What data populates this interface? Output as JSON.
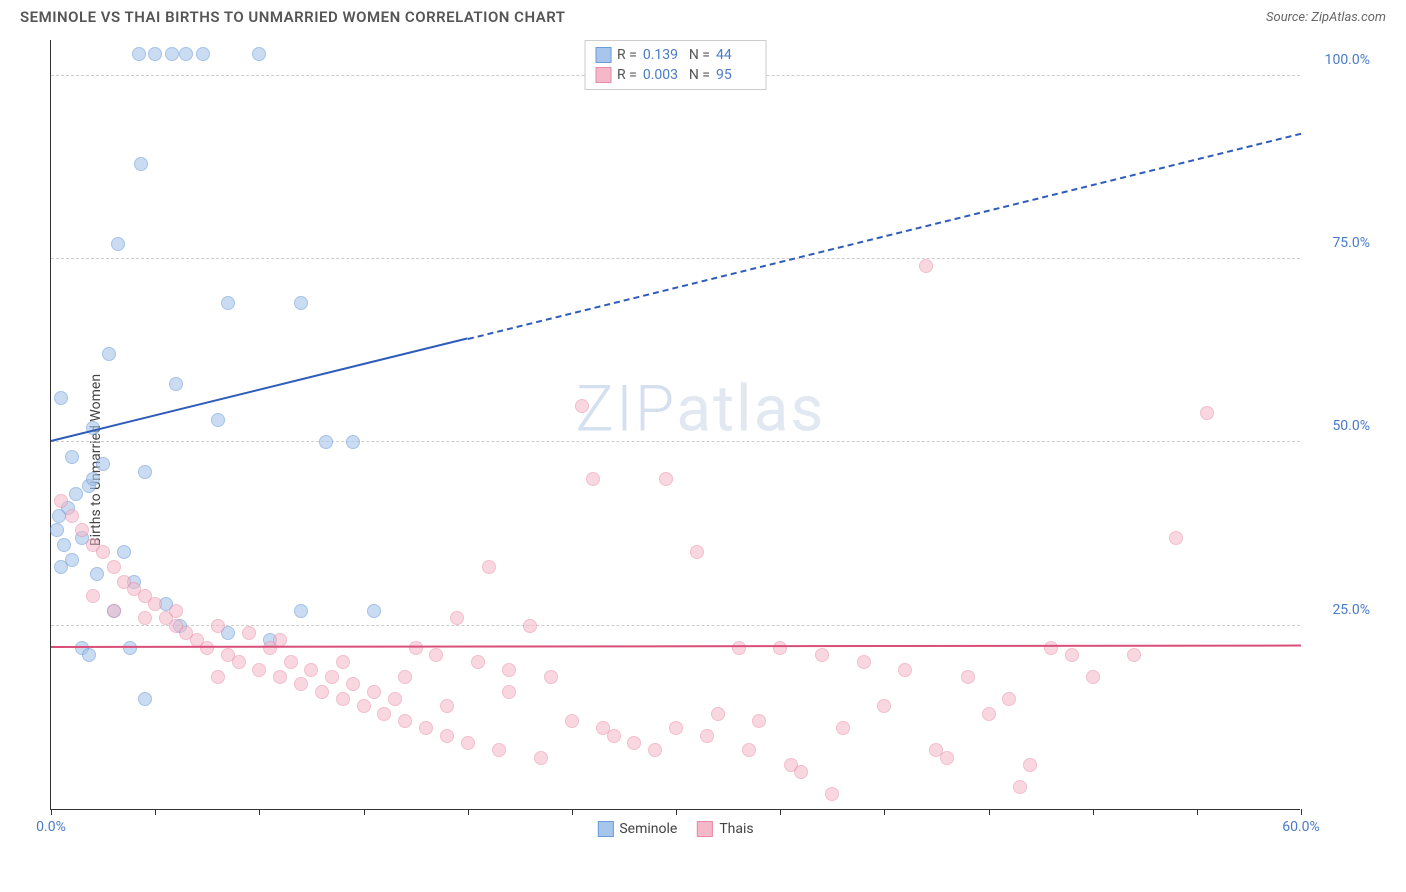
{
  "header": {
    "title": "SEMINOLE VS THAI BIRTHS TO UNMARRIED WOMEN CORRELATION CHART",
    "source": "Source: ZipAtlas.com"
  },
  "watermark": {
    "zip": "ZIP",
    "atlas": "atlas"
  },
  "chart": {
    "type": "scatter",
    "ylabel": "Births to Unmarried Women",
    "xlim": [
      0,
      60
    ],
    "ylim": [
      0,
      105
    ],
    "xtick_positions": [
      0,
      5,
      10,
      15,
      20,
      25,
      30,
      35,
      40,
      45,
      50,
      55,
      60
    ],
    "xtick_labels": {
      "0": "0.0%",
      "60": "60.0%"
    },
    "ytick_positions": [
      25,
      50,
      75,
      100
    ],
    "ytick_labels": {
      "25": "25.0%",
      "50": "50.0%",
      "75": "75.0%",
      "100": "100.0%"
    },
    "background_color": "#ffffff",
    "grid_color": "#cccccc",
    "axis_color": "#333333",
    "tick_label_color": "#4a7bc8",
    "label_fontsize": 14,
    "point_radius": 7,
    "series": [
      {
        "name": "Seminole",
        "fill_color": "#a8c5eb",
        "stroke_color": "#6b9bd8",
        "fill_opacity": 0.6,
        "r_value": "0.139",
        "n_value": "44",
        "trend": {
          "color": "#2e5cb8",
          "solid_x_range": [
            0,
            20
          ],
          "dashed_x_range": [
            20,
            60
          ],
          "y_at_x0": 50,
          "y_at_x60": 92
        },
        "points": [
          [
            4.2,
            103
          ],
          [
            5.0,
            103
          ],
          [
            5.8,
            103
          ],
          [
            6.5,
            103
          ],
          [
            7.3,
            103
          ],
          [
            10.0,
            103
          ],
          [
            4.3,
            88
          ],
          [
            3.2,
            77
          ],
          [
            8.5,
            69
          ],
          [
            12.0,
            69
          ],
          [
            2.8,
            62
          ],
          [
            6.0,
            58
          ],
          [
            0.5,
            56
          ],
          [
            8.0,
            53
          ],
          [
            2.0,
            52
          ],
          [
            13.2,
            50
          ],
          [
            14.5,
            50
          ],
          [
            1.0,
            48
          ],
          [
            2.5,
            47
          ],
          [
            4.5,
            46
          ],
          [
            1.8,
            44
          ],
          [
            1.2,
            43
          ],
          [
            0.8,
            41
          ],
          [
            0.4,
            40
          ],
          [
            0.3,
            38
          ],
          [
            1.5,
            37
          ],
          [
            0.6,
            36
          ],
          [
            3.5,
            35
          ],
          [
            1.0,
            34
          ],
          [
            0.5,
            33
          ],
          [
            2.2,
            32
          ],
          [
            4.0,
            31
          ],
          [
            5.5,
            28
          ],
          [
            3.0,
            27
          ],
          [
            15.5,
            27
          ],
          [
            12.0,
            27
          ],
          [
            6.2,
            25
          ],
          [
            3.8,
            22
          ],
          [
            1.5,
            22
          ],
          [
            10.5,
            23
          ],
          [
            1.8,
            21
          ],
          [
            4.5,
            15
          ],
          [
            8.5,
            24
          ],
          [
            2.0,
            45
          ]
        ]
      },
      {
        "name": "Thais",
        "fill_color": "#f5b8c8",
        "stroke_color": "#e88aa5",
        "fill_opacity": 0.55,
        "r_value": "0.003",
        "n_value": "95",
        "trend": {
          "color": "#d94f7a",
          "solid_x_range": [
            0,
            60
          ],
          "dashed_x_range": null,
          "y_at_x0": 22,
          "y_at_x60": 22.2
        },
        "points": [
          [
            42,
            74
          ],
          [
            25.5,
            55
          ],
          [
            29.5,
            45
          ],
          [
            55.5,
            54
          ],
          [
            26,
            45
          ],
          [
            31,
            35
          ],
          [
            35,
            22
          ],
          [
            21,
            33
          ],
          [
            19.5,
            26
          ],
          [
            23,
            25
          ],
          [
            33,
            22
          ],
          [
            37,
            21
          ],
          [
            39,
            20
          ],
          [
            41,
            19
          ],
          [
            44,
            18
          ],
          [
            46,
            15
          ],
          [
            48,
            22
          ],
          [
            50,
            18
          ],
          [
            52,
            21
          ],
          [
            54,
            37
          ],
          [
            0.5,
            42
          ],
          [
            1,
            40
          ],
          [
            1.5,
            38
          ],
          [
            2,
            36
          ],
          [
            2.5,
            35
          ],
          [
            3,
            33
          ],
          [
            3.5,
            31
          ],
          [
            4,
            30
          ],
          [
            4.5,
            29
          ],
          [
            5,
            28
          ],
          [
            5.5,
            26
          ],
          [
            6,
            25
          ],
          [
            6.5,
            24
          ],
          [
            7,
            23
          ],
          [
            7.5,
            22
          ],
          [
            8,
            25
          ],
          [
            8.5,
            21
          ],
          [
            9,
            20
          ],
          [
            9.5,
            24
          ],
          [
            10,
            19
          ],
          [
            10.5,
            22
          ],
          [
            11,
            18
          ],
          [
            11.5,
            20
          ],
          [
            12,
            17
          ],
          [
            12.5,
            19
          ],
          [
            13,
            16
          ],
          [
            13.5,
            18
          ],
          [
            14,
            15
          ],
          [
            14.5,
            17
          ],
          [
            15,
            14
          ],
          [
            15.5,
            16
          ],
          [
            16,
            13
          ],
          [
            16.5,
            15
          ],
          [
            17,
            12
          ],
          [
            17.5,
            22
          ],
          [
            18,
            11
          ],
          [
            18.5,
            21
          ],
          [
            19,
            10
          ],
          [
            20,
            9
          ],
          [
            20.5,
            20
          ],
          [
            21.5,
            8
          ],
          [
            22,
            19
          ],
          [
            23.5,
            7
          ],
          [
            24,
            18
          ],
          [
            25,
            12
          ],
          [
            26.5,
            11
          ],
          [
            27,
            10
          ],
          [
            28,
            9
          ],
          [
            29,
            8
          ],
          [
            30,
            11
          ],
          [
            31.5,
            10
          ],
          [
            32,
            13
          ],
          [
            33.5,
            8
          ],
          [
            34,
            12
          ],
          [
            35.5,
            6
          ],
          [
            36,
            5
          ],
          [
            37.5,
            2
          ],
          [
            38,
            11
          ],
          [
            40,
            14
          ],
          [
            42.5,
            8
          ],
          [
            43,
            7
          ],
          [
            45,
            13
          ],
          [
            47,
            6
          ],
          [
            49,
            21
          ],
          [
            2,
            29
          ],
          [
            3,
            27
          ],
          [
            4.5,
            26
          ],
          [
            6,
            27
          ],
          [
            8,
            18
          ],
          [
            11,
            23
          ],
          [
            14,
            20
          ],
          [
            17,
            18
          ],
          [
            19,
            14
          ],
          [
            22,
            16
          ],
          [
            46.5,
            3
          ]
        ]
      }
    ],
    "legend_bottom": [
      {
        "label": "Seminole",
        "fill": "#a8c5eb",
        "stroke": "#6b9bd8"
      },
      {
        "label": "Thais",
        "fill": "#f5b8c8",
        "stroke": "#e88aa5"
      }
    ],
    "legend_top_labels": {
      "r": "R =",
      "n": "N ="
    }
  }
}
